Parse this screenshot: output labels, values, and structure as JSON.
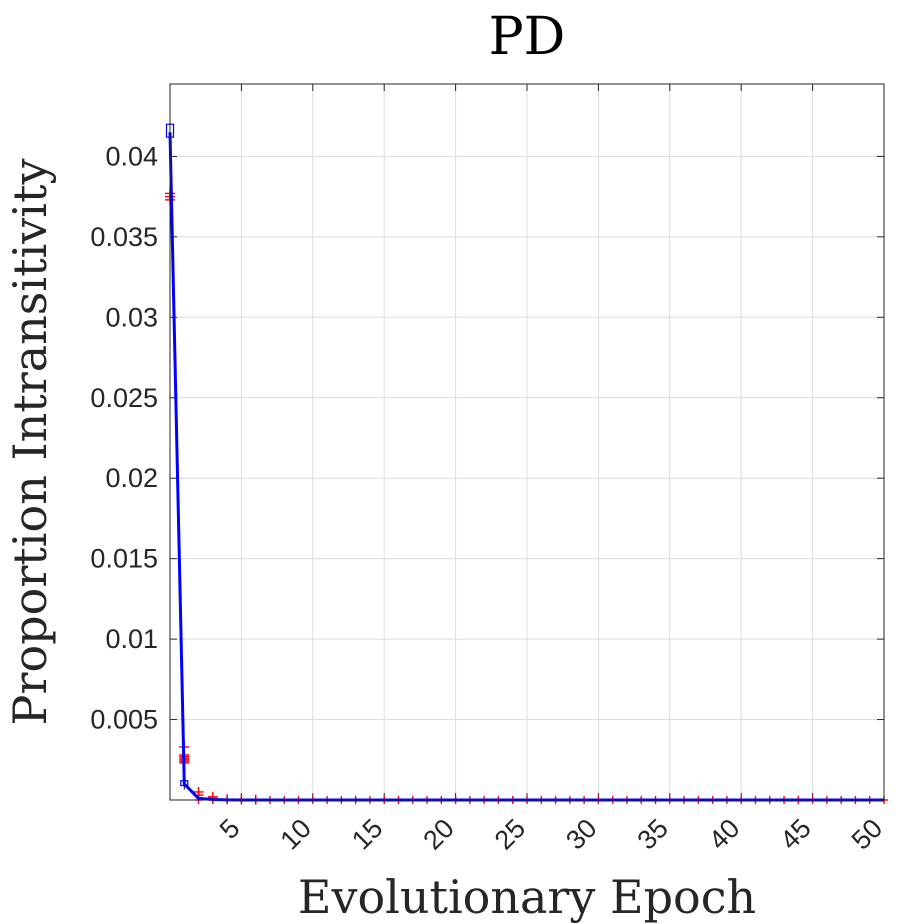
{
  "chart_data": {
    "type": "line",
    "title": "PD",
    "xlabel": "Evolutionary Epoch",
    "ylabel": "Proportion Intransitivity",
    "xlim": [
      0,
      50
    ],
    "ylim": [
      0,
      0.0445
    ],
    "x_ticks": [
      5,
      10,
      15,
      20,
      25,
      30,
      35,
      40,
      45,
      50
    ],
    "x_tick_labels": [
      "5",
      "10",
      "15",
      "20",
      "25",
      "30",
      "35",
      "40",
      "45",
      "50"
    ],
    "y_ticks": [
      0.005,
      0.01,
      0.015,
      0.02,
      0.025,
      0.03,
      0.035,
      0.04
    ],
    "y_tick_labels": [
      "0.005",
      "0.01",
      "0.015",
      "0.02",
      "0.025",
      "0.03",
      "0.035",
      "0.04"
    ],
    "grid": true,
    "series": [
      {
        "color": "#0000ff",
        "x": [
          0,
          1,
          2,
          3,
          4,
          5,
          6,
          7,
          8,
          9,
          10,
          11,
          12,
          13,
          14,
          15,
          16,
          17,
          18,
          19,
          20,
          21,
          22,
          23,
          24,
          25,
          26,
          27,
          28,
          29,
          30,
          31,
          32,
          33,
          34,
          35,
          36,
          37,
          38,
          39,
          40,
          41,
          42,
          43,
          44,
          45,
          46,
          47,
          48,
          49,
          50
        ],
        "y": [
          0.0415,
          0.001,
          0.0001,
          3e-05,
          1e-05,
          0,
          0,
          0,
          0,
          0,
          0,
          0,
          0,
          0,
          0,
          0,
          0,
          0,
          0,
          0,
          0,
          0,
          0,
          0,
          0,
          0,
          0,
          0,
          0,
          0,
          0,
          0,
          0,
          0,
          0,
          0,
          0,
          0,
          0,
          0,
          0,
          0,
          0,
          0,
          0,
          0,
          0,
          0,
          0,
          0,
          0
        ]
      }
    ],
    "boxes": [
      {
        "x": 0,
        "q1": 0.0412,
        "q3": 0.042,
        "whisker_low": 0.0405,
        "whisker_high": 0.0445
      },
      {
        "x": 1,
        "q1": 0.0009,
        "q3": 0.0012,
        "whisker_low": 0.0006,
        "whisker_high": 0.0017
      }
    ],
    "outliers": [
      {
        "x": 0,
        "y": [
          0.0373,
          0.0375,
          0.0377
        ]
      },
      {
        "x": 1,
        "y": [
          0.0023,
          0.0024,
          0.0025,
          0.0026,
          0.0027,
          0.0028,
          0.0033
        ]
      },
      {
        "x": 2,
        "y": [
          0.0003,
          0.0005
        ]
      },
      {
        "x": 3,
        "y": [
          0.0001,
          0.0002
        ]
      },
      {
        "x": 4,
        "y": [
          5e-05
        ]
      },
      {
        "x": 5,
        "y": [
          3e-05
        ]
      },
      {
        "x": 6,
        "y": [
          2e-05
        ]
      }
    ],
    "outlier_color": "#ff0000",
    "box_color": "#0000ff"
  }
}
